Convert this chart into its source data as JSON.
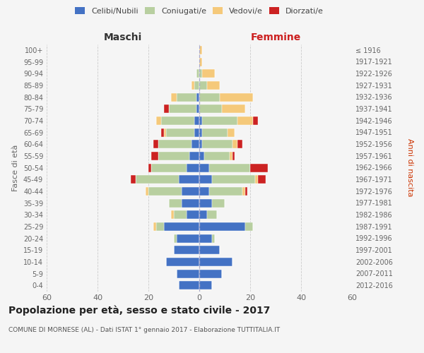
{
  "age_groups": [
    "0-4",
    "5-9",
    "10-14",
    "15-19",
    "20-24",
    "25-29",
    "30-34",
    "35-39",
    "40-44",
    "45-49",
    "50-54",
    "55-59",
    "60-64",
    "65-69",
    "70-74",
    "75-79",
    "80-84",
    "85-89",
    "90-94",
    "95-99",
    "100+"
  ],
  "birth_years": [
    "2012-2016",
    "2007-2011",
    "2002-2006",
    "1997-2001",
    "1992-1996",
    "1987-1991",
    "1982-1986",
    "1977-1981",
    "1972-1976",
    "1967-1971",
    "1962-1966",
    "1957-1961",
    "1952-1956",
    "1947-1951",
    "1942-1946",
    "1937-1941",
    "1932-1936",
    "1927-1931",
    "1922-1926",
    "1917-1921",
    "≤ 1916"
  ],
  "maschi": {
    "celibi": [
      8,
      9,
      13,
      10,
      9,
      14,
      5,
      7,
      7,
      8,
      5,
      4,
      3,
      2,
      2,
      1,
      1,
      0,
      0,
      0,
      0
    ],
    "coniugati": [
      0,
      0,
      0,
      0,
      1,
      3,
      5,
      5,
      13,
      17,
      14,
      12,
      13,
      11,
      13,
      11,
      8,
      2,
      1,
      0,
      0
    ],
    "vedovi": [
      0,
      0,
      0,
      0,
      0,
      1,
      1,
      0,
      1,
      0,
      0,
      0,
      0,
      1,
      2,
      0,
      2,
      1,
      0,
      0,
      0
    ],
    "divorziati": [
      0,
      0,
      0,
      0,
      0,
      0,
      0,
      0,
      0,
      2,
      1,
      3,
      2,
      1,
      0,
      2,
      0,
      0,
      0,
      0,
      0
    ]
  },
  "femmine": {
    "nubili": [
      5,
      9,
      13,
      8,
      5,
      18,
      3,
      5,
      4,
      5,
      4,
      2,
      1,
      1,
      1,
      0,
      0,
      0,
      0,
      0,
      0
    ],
    "coniugate": [
      0,
      0,
      0,
      0,
      1,
      3,
      4,
      5,
      13,
      17,
      16,
      10,
      12,
      10,
      14,
      9,
      8,
      3,
      1,
      0,
      0
    ],
    "vedove": [
      0,
      0,
      0,
      0,
      0,
      0,
      0,
      0,
      1,
      1,
      0,
      1,
      2,
      3,
      6,
      9,
      13,
      5,
      5,
      1,
      1
    ],
    "divorziate": [
      0,
      0,
      0,
      0,
      0,
      0,
      0,
      0,
      1,
      3,
      7,
      1,
      2,
      0,
      2,
      0,
      0,
      0,
      0,
      0,
      0
    ]
  },
  "colors": {
    "celibi": "#4472c4",
    "coniugati": "#b8cfa0",
    "vedovi": "#f5c97a",
    "divorziati": "#cc2222"
  },
  "legend_labels": [
    "Celibi/Nubili",
    "Coniugati/e",
    "Vedovi/e",
    "Diorzati/e"
  ],
  "xlabel_left": "Maschi",
  "xlabel_right": "Femmine",
  "ylabel_left": "Fasce di età",
  "ylabel_right": "Anni di nascita",
  "title": "Popolazione per età, sesso e stato civile - 2017",
  "subtitle": "COMUNE DI MORNESE (AL) - Dati ISTAT 1° gennaio 2017 - Elaborazione TUTTITALIA.IT",
  "xlim": 60,
  "bar_height": 0.72,
  "background_color": "#f5f5f5",
  "grid_color": "#cccccc"
}
